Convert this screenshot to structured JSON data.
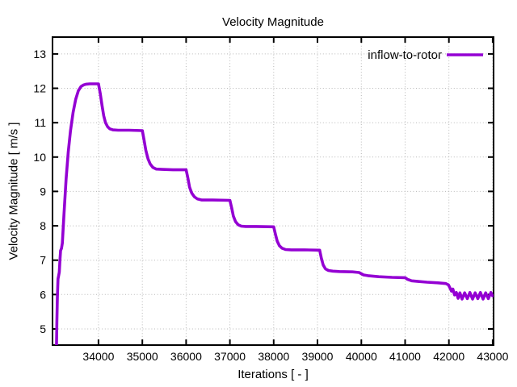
{
  "title": "Velocity Magnitude",
  "legend": {
    "label": "inflow-to-rotor"
  },
  "axes": {
    "x_label": "Iterations [ - ]",
    "y_label": "Velocity Magnitude [ m/s ]"
  },
  "colors": {
    "line": "#9400d3",
    "grid": "#b8b8b8",
    "axis": "#000000",
    "background": "#ffffff",
    "text": "#000000"
  },
  "chart_data": {
    "type": "line",
    "title": "Velocity Magnitude",
    "xlabel": "Iterations [ - ]",
    "ylabel": "Velocity Magnitude [ m/s ]",
    "xlim": [
      32950,
      43020
    ],
    "ylim": [
      4.53,
      13.49
    ],
    "xticks": [
      34000,
      35000,
      36000,
      37000,
      38000,
      39000,
      40000,
      41000,
      42000,
      43000
    ],
    "yticks": [
      5,
      6,
      7,
      8,
      9,
      10,
      11,
      12,
      13
    ],
    "grid": true,
    "legend_position": "top-right-inside",
    "series": [
      {
        "name": "inflow-to-rotor",
        "color": "#9400d3",
        "points": [
          [
            33040,
            4.45
          ],
          [
            33050,
            5.2
          ],
          [
            33060,
            5.9
          ],
          [
            33075,
            6.45
          ],
          [
            33090,
            6.55
          ],
          [
            33105,
            6.65
          ],
          [
            33120,
            7.0
          ],
          [
            33135,
            7.28
          ],
          [
            33155,
            7.34
          ],
          [
            33175,
            7.5
          ],
          [
            33210,
            8.3
          ],
          [
            33260,
            9.35
          ],
          [
            33310,
            10.15
          ],
          [
            33360,
            10.75
          ],
          [
            33420,
            11.3
          ],
          [
            33480,
            11.68
          ],
          [
            33540,
            11.93
          ],
          [
            33600,
            12.05
          ],
          [
            33660,
            12.1
          ],
          [
            33720,
            12.12
          ],
          [
            33800,
            12.13
          ],
          [
            33900,
            12.13
          ],
          [
            34000,
            12.13
          ],
          [
            34040,
            11.85
          ],
          [
            34080,
            11.5
          ],
          [
            34120,
            11.2
          ],
          [
            34160,
            11.0
          ],
          [
            34210,
            10.88
          ],
          [
            34260,
            10.82
          ],
          [
            34330,
            10.79
          ],
          [
            34450,
            10.78
          ],
          [
            34700,
            10.78
          ],
          [
            35000,
            10.77
          ],
          [
            35040,
            10.5
          ],
          [
            35080,
            10.2
          ],
          [
            35130,
            9.95
          ],
          [
            35180,
            9.8
          ],
          [
            35240,
            9.7
          ],
          [
            35320,
            9.65
          ],
          [
            35450,
            9.64
          ],
          [
            35700,
            9.63
          ],
          [
            36000,
            9.63
          ],
          [
            36040,
            9.4
          ],
          [
            36080,
            9.12
          ],
          [
            36130,
            8.95
          ],
          [
            36190,
            8.84
          ],
          [
            36260,
            8.78
          ],
          [
            36360,
            8.75
          ],
          [
            36600,
            8.75
          ],
          [
            37000,
            8.74
          ],
          [
            37040,
            8.52
          ],
          [
            37080,
            8.28
          ],
          [
            37130,
            8.12
          ],
          [
            37190,
            8.03
          ],
          [
            37260,
            7.99
          ],
          [
            37360,
            7.98
          ],
          [
            37600,
            7.98
          ],
          [
            38000,
            7.97
          ],
          [
            38040,
            7.75
          ],
          [
            38080,
            7.55
          ],
          [
            38130,
            7.42
          ],
          [
            38190,
            7.35
          ],
          [
            38270,
            7.31
          ],
          [
            38400,
            7.3
          ],
          [
            38700,
            7.3
          ],
          [
            39050,
            7.29
          ],
          [
            39090,
            7.05
          ],
          [
            39130,
            6.86
          ],
          [
            39180,
            6.75
          ],
          [
            39250,
            6.7
          ],
          [
            39350,
            6.68
          ],
          [
            39500,
            6.67
          ],
          [
            39800,
            6.66
          ],
          [
            39950,
            6.64
          ],
          [
            40050,
            6.57
          ],
          [
            40150,
            6.55
          ],
          [
            40400,
            6.52
          ],
          [
            40700,
            6.5
          ],
          [
            41000,
            6.49
          ],
          [
            41060,
            6.44
          ],
          [
            41150,
            6.4
          ],
          [
            41300,
            6.38
          ],
          [
            41500,
            6.36
          ],
          [
            41750,
            6.34
          ],
          [
            41930,
            6.32
          ],
          [
            41990,
            6.28
          ],
          [
            42030,
            6.18
          ],
          [
            42060,
            6.1
          ],
          [
            42090,
            6.16
          ],
          [
            42130,
            5.99
          ],
          [
            42170,
            6.06
          ],
          [
            42210,
            5.89
          ],
          [
            42250,
            6.05
          ],
          [
            42300,
            5.87
          ],
          [
            42360,
            6.05
          ],
          [
            42420,
            5.88
          ],
          [
            42480,
            6.06
          ],
          [
            42540,
            5.87
          ],
          [
            42600,
            6.05
          ],
          [
            42660,
            5.88
          ],
          [
            42720,
            6.06
          ],
          [
            42780,
            5.87
          ],
          [
            42840,
            6.05
          ],
          [
            42900,
            5.88
          ],
          [
            42960,
            6.06
          ],
          [
            43000,
            5.96
          ]
        ]
      }
    ]
  }
}
